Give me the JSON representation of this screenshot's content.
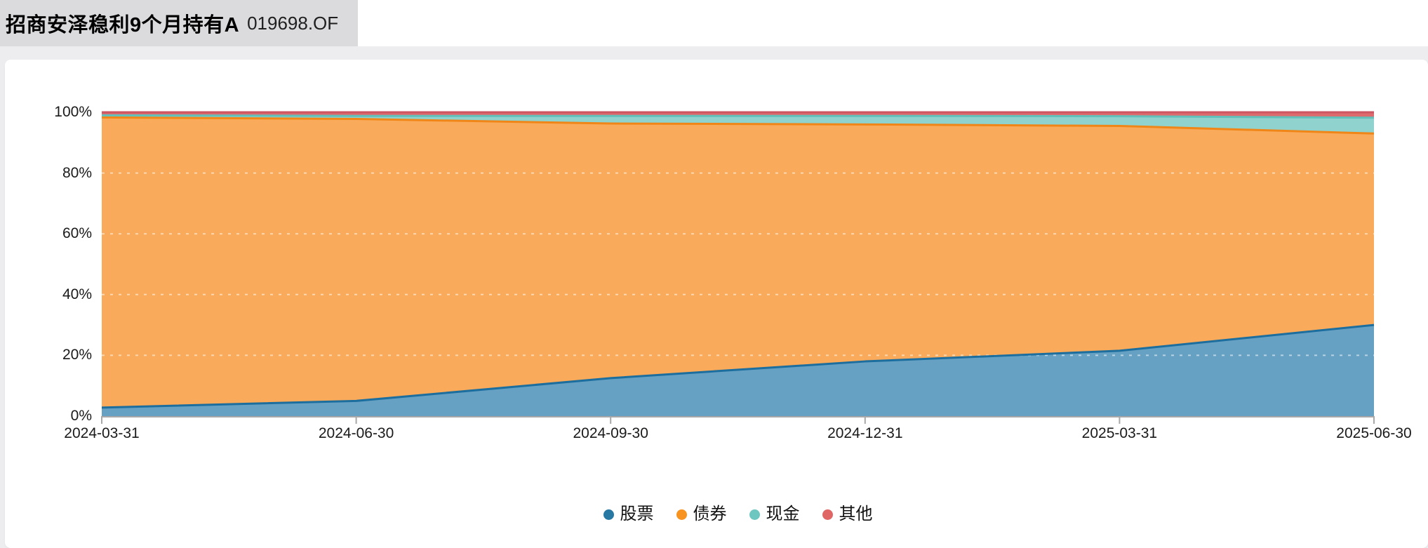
{
  "header": {
    "fund_name": "招商安泽稳利9个月持有A",
    "fund_code": "019698.OF"
  },
  "colors": {
    "page_bg": "#ededef",
    "title_chip_bg": "#dbdbde",
    "card_bg": "#ffffff"
  },
  "chart_data": {
    "type": "area",
    "stacked": true,
    "unit": "%",
    "title": "",
    "xlabel": "",
    "ylabel": "",
    "ylim": [
      0,
      100
    ],
    "x": [
      "2024-03-31",
      "2024-06-30",
      "2024-09-30",
      "2024-12-31",
      "2025-03-31",
      "2025-06-30"
    ],
    "y_ticks": [
      0,
      20,
      40,
      60,
      80,
      100
    ],
    "y_tick_suffix": "%",
    "gridlines": [
      20,
      40,
      60,
      80
    ],
    "gridline_color": "rgba(255,255,255,0.55)",
    "axis_color": "#a8a8a8",
    "label_color": "#1a1a1a",
    "legend_position": "bottom-center",
    "series": [
      {
        "name": "股票",
        "values": [
          2.8,
          5.0,
          12.5,
          18.0,
          21.5,
          30.0
        ],
        "color": "#2878a4",
        "fill": "#66a0c2",
        "stroke": "#1c6e9f"
      },
      {
        "name": "债券",
        "values": [
          95.5,
          92.8,
          83.8,
          78.0,
          74.0,
          63.0
        ],
        "color": "#f7931e",
        "fill": "#f9aa5a",
        "stroke": "#f08617"
      },
      {
        "name": "现金",
        "values": [
          0.7,
          1.0,
          2.5,
          2.8,
          3.2,
          5.2
        ],
        "color": "#6ec6c1",
        "fill": "#8fd2ce",
        "stroke": "#62c0ba"
      },
      {
        "name": "其他",
        "values": [
          1.0,
          1.2,
          1.2,
          1.2,
          1.3,
          1.8
        ],
        "color": "#e06665",
        "fill": "#dd6b6e",
        "stroke": "#cd5663"
      }
    ]
  }
}
